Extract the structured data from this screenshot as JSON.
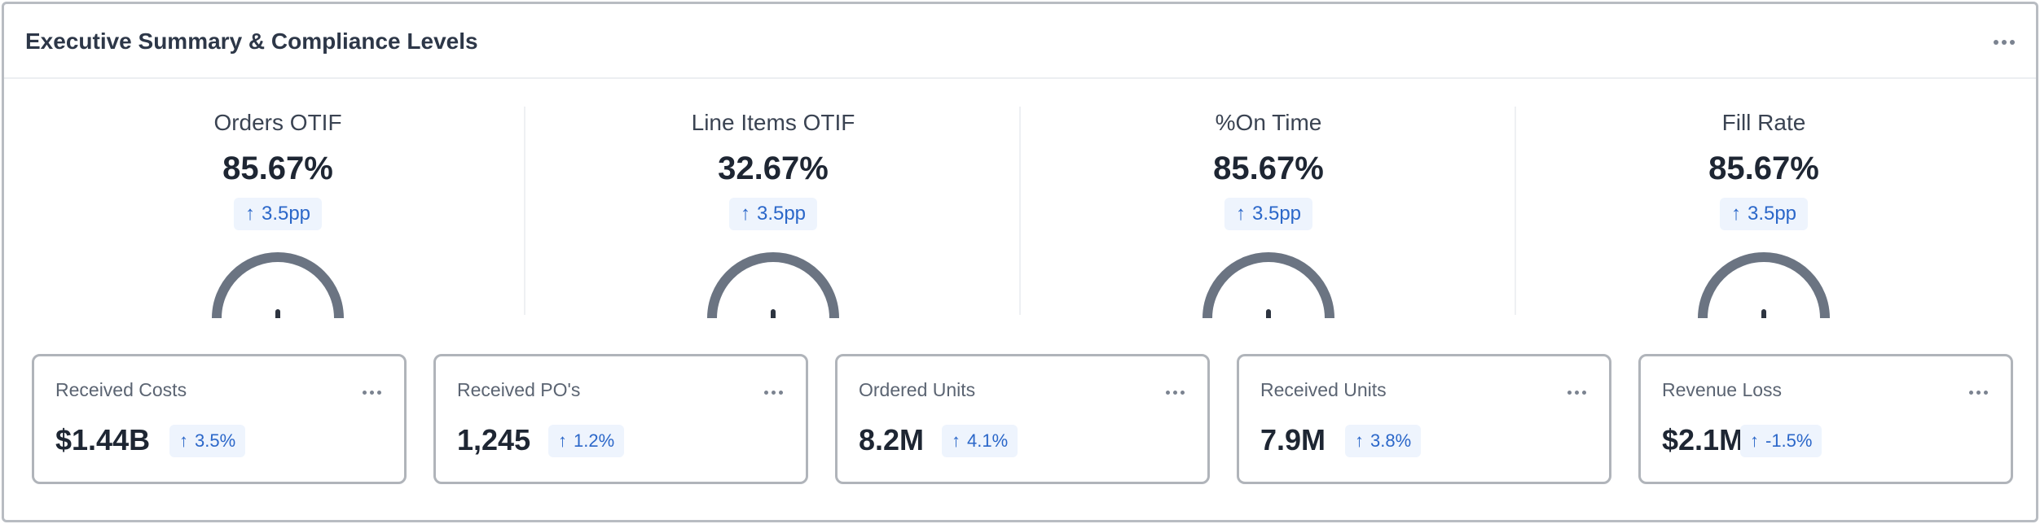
{
  "panel": {
    "title": "Executive Summary & Compliance Levels",
    "menu_icon": "more-horizontal-icon"
  },
  "kpis": [
    {
      "label": "Orders OTIF",
      "value": "85.67%",
      "delta": "3.5pp",
      "delta_icon": "arrow-up-icon",
      "gauge_color": "#6b7482"
    },
    {
      "label": "Line Items OTIF",
      "value": "32.67%",
      "delta": "3.5pp",
      "delta_icon": "arrow-up-icon",
      "gauge_color": "#6b7482"
    },
    {
      "label": "%On Time",
      "value": "85.67%",
      "delta": "3.5pp",
      "delta_icon": "arrow-up-icon",
      "gauge_color": "#6b7482"
    },
    {
      "label": "Fill Rate",
      "value": "85.67%",
      "delta": "3.5pp",
      "delta_icon": "arrow-up-icon",
      "gauge_color": "#6b7482"
    }
  ],
  "cards": [
    {
      "label": "Received Costs",
      "value": "$1.44B",
      "delta": "3.5%"
    },
    {
      "label": "Received PO's",
      "value": "1,245",
      "delta": "1.2%"
    },
    {
      "label": "Ordered Units",
      "value": "8.2M",
      "delta": "4.1%"
    },
    {
      "label": "Received Units",
      "value": "7.9M",
      "delta": "3.8%"
    },
    {
      "label": "Revenue Loss",
      "value": "$2.1M",
      "delta": "-1.5%"
    }
  ],
  "colors": {
    "delta_bg": "#eef4fd",
    "delta_text": "#2b67c9",
    "border": "#b0b4ba"
  }
}
